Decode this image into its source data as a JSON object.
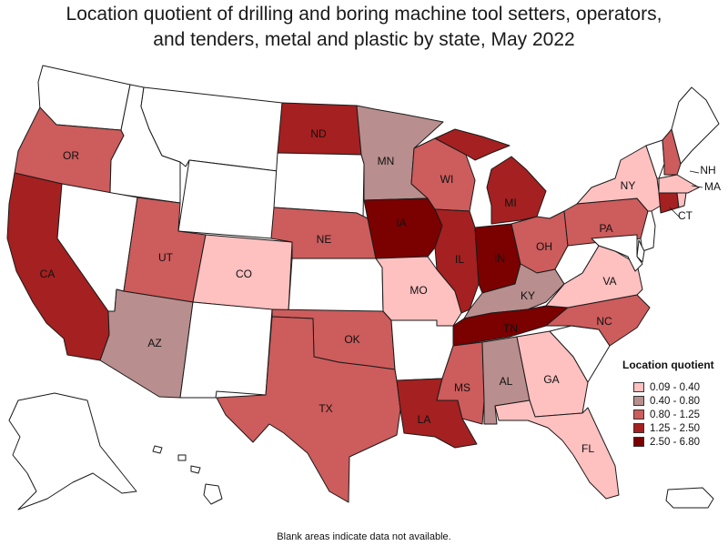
{
  "title_line1": "Location quotient of drilling and boring machine tool setters, operators,",
  "title_line2": "and tenders, metal and plastic by state, May 2022",
  "legend": {
    "title": "Location quotient",
    "bins": [
      {
        "label": "0.09 - 0.40",
        "color": "#ffc0c0"
      },
      {
        "label": "0.40 - 0.80",
        "color": "#b98e8e"
      },
      {
        "label": "0.80 - 1.25",
        "color": "#cd5c5c"
      },
      {
        "label": "1.25 - 2.50",
        "color": "#a52020"
      },
      {
        "label": "2.50 - 6.80",
        "color": "#7b0000"
      }
    ]
  },
  "no_data_color": "#ffffff",
  "footnote": "Blank areas indicate data not available.",
  "states": {
    "WA": {
      "label": "",
      "bin": null
    },
    "OR": {
      "label": "OR",
      "bin": 2
    },
    "CA": {
      "label": "CA",
      "bin": 3
    },
    "ID": {
      "label": "",
      "bin": null
    },
    "NV": {
      "label": "",
      "bin": null
    },
    "MT": {
      "label": "",
      "bin": null
    },
    "WY": {
      "label": "",
      "bin": null
    },
    "UT": {
      "label": "UT",
      "bin": 2
    },
    "AZ": {
      "label": "AZ",
      "bin": 1
    },
    "CO": {
      "label": "CO",
      "bin": 0
    },
    "NM": {
      "label": "",
      "bin": null
    },
    "ND": {
      "label": "ND",
      "bin": 3
    },
    "SD": {
      "label": "",
      "bin": null
    },
    "NE": {
      "label": "NE",
      "bin": 2
    },
    "KS": {
      "label": "",
      "bin": null
    },
    "OK": {
      "label": "OK",
      "bin": 2
    },
    "TX": {
      "label": "TX",
      "bin": 2
    },
    "MN": {
      "label": "MN",
      "bin": 1
    },
    "IA": {
      "label": "IA",
      "bin": 4
    },
    "MO": {
      "label": "MO",
      "bin": 0
    },
    "AR": {
      "label": "",
      "bin": null
    },
    "LA": {
      "label": "LA",
      "bin": 3
    },
    "WI": {
      "label": "WI",
      "bin": 2
    },
    "IL": {
      "label": "IL",
      "bin": 3
    },
    "MI": {
      "label": "MI",
      "bin": 3
    },
    "IN": {
      "label": "IN",
      "bin": 4
    },
    "OH": {
      "label": "OH",
      "bin": 2
    },
    "KY": {
      "label": "KY",
      "bin": 1
    },
    "TN": {
      "label": "TN",
      "bin": 4
    },
    "MS": {
      "label": "MS",
      "bin": 2
    },
    "AL": {
      "label": "AL",
      "bin": 1
    },
    "GA": {
      "label": "GA",
      "bin": 0
    },
    "FL": {
      "label": "FL",
      "bin": 0
    },
    "SC": {
      "label": "",
      "bin": null
    },
    "NC": {
      "label": "NC",
      "bin": 2
    },
    "VA": {
      "label": "VA",
      "bin": 0
    },
    "WV": {
      "label": "",
      "bin": null
    },
    "PA": {
      "label": "PA",
      "bin": 2
    },
    "NY": {
      "label": "NY",
      "bin": 0
    },
    "VT": {
      "label": "",
      "bin": null
    },
    "NH": {
      "label": "NH",
      "bin": 2
    },
    "ME": {
      "label": "",
      "bin": null
    },
    "MA": {
      "label": "MA",
      "bin": 0
    },
    "CT": {
      "label": "CT",
      "bin": 3
    },
    "RI": {
      "label": "",
      "bin": 0
    },
    "NJ": {
      "label": "",
      "bin": null
    },
    "DE": {
      "label": "",
      "bin": null
    },
    "MD": {
      "label": "",
      "bin": null
    },
    "AK": {
      "label": "",
      "bin": null
    },
    "HI": {
      "label": "",
      "bin": null
    },
    "PR": {
      "label": "",
      "bin": null
    }
  }
}
